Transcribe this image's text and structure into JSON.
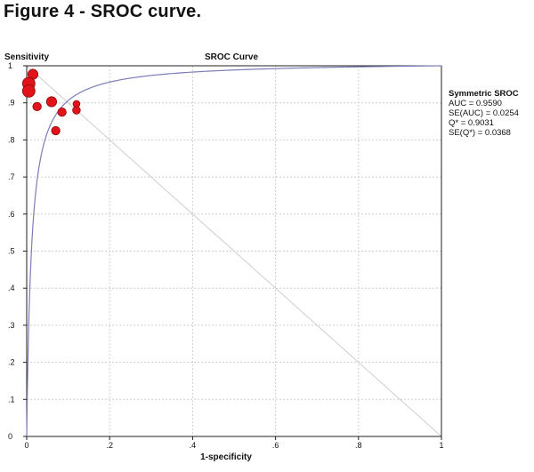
{
  "figure": {
    "title": "Figure 4 - SROC curve."
  },
  "chart_data": {
    "type": "scatter",
    "title": "SROC Curve",
    "xlabel": "1-specificity",
    "ylabel": "Sensitivity",
    "xlim": [
      0,
      1
    ],
    "ylim": [
      0,
      1
    ],
    "grid": true,
    "x_ticks": [
      "0",
      ".2",
      ".4",
      ".6",
      ".8",
      "1"
    ],
    "y_ticks": [
      "0",
      ".1",
      ".2",
      ".3",
      ".4",
      ".5",
      ".6",
      ".7",
      ".8",
      ".9",
      "1"
    ],
    "x_tick_values": [
      0,
      0.2,
      0.4,
      0.6,
      0.8,
      1
    ],
    "y_tick_values": [
      0,
      0.1,
      0.2,
      0.3,
      0.4,
      0.5,
      0.6,
      0.7,
      0.8,
      0.9,
      1
    ],
    "points": [
      {
        "x": 0.015,
        "y": 0.977,
        "weight": 0.7
      },
      {
        "x": 0.005,
        "y": 0.952,
        "weight": 1.0
      },
      {
        "x": 0.005,
        "y": 0.932,
        "weight": 1.0
      },
      {
        "x": 0.06,
        "y": 0.903,
        "weight": 0.7
      },
      {
        "x": 0.025,
        "y": 0.89,
        "weight": 0.5
      },
      {
        "x": 0.12,
        "y": 0.897,
        "weight": 0.3
      },
      {
        "x": 0.085,
        "y": 0.875,
        "weight": 0.5
      },
      {
        "x": 0.12,
        "y": 0.88,
        "weight": 0.4
      },
      {
        "x": 0.07,
        "y": 0.825,
        "weight": 0.5
      }
    ],
    "curve": {
      "name": "Symmetric SROC",
      "auc": 0.959,
      "q_star": 0.9031
    },
    "legend": {
      "position": "right",
      "title": "Symmetric SROC",
      "lines": [
        "AUC = 0.9590",
        "SE(AUC) = 0.0254",
        "Q* = 0.9031",
        "SE(Q*) = 0.0368"
      ]
    },
    "colors": {
      "point_fill": "#e0141a",
      "point_stroke": "#8c0a0a",
      "curve": "#7c7cb8",
      "grid": "#cfcfcf",
      "axis": "#222222"
    }
  }
}
